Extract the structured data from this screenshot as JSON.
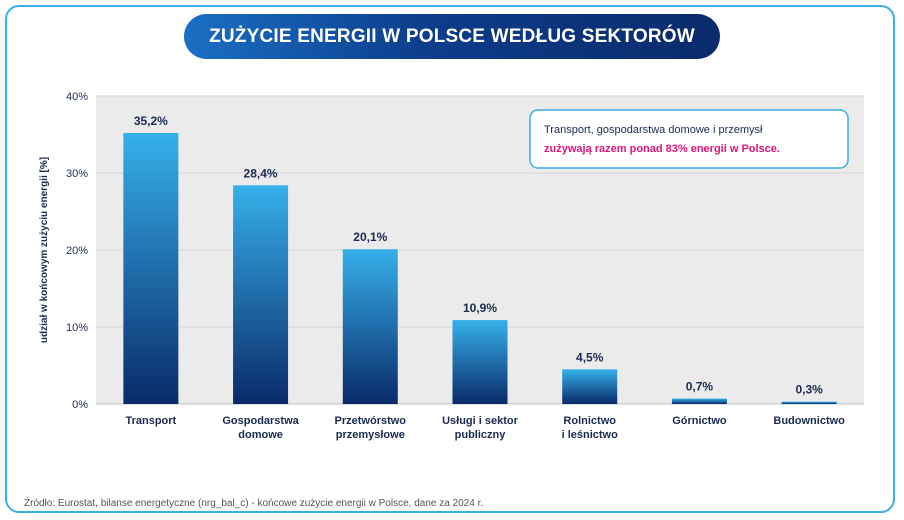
{
  "title": "ZUŻYCIE ENERGII W POLSCE WEDŁUG SEKTORÓW",
  "source": "Źródło: Eurostat, bilanse energetyczne (nrg_bal_c) - końcowe zużycie energii w Polsce, dane za 2024 r.",
  "callout": {
    "line1": "Transport, gospodarstwa domowe i przemysł",
    "line2": "zużywają razem ponad 83% energii w Polsce."
  },
  "colors": {
    "frame": "#3aaee6",
    "bar_top": "#36b0ea",
    "bar_bottom": "#0a2a6a",
    "highlight": "#e0157a",
    "text_dark": "#1a2a50",
    "plot_bg": "#ebebeb"
  },
  "chart_data": {
    "type": "bar",
    "ylabel": "udział w końcowym zużyciu energii [%]",
    "ylim": [
      0,
      40
    ],
    "yticks": [
      0,
      10,
      20,
      30,
      40
    ],
    "ytick_labels": [
      "0%",
      "10%",
      "20%",
      "30%",
      "40%"
    ],
    "grid": true,
    "categories": [
      [
        "Transport"
      ],
      [
        "Gospodarstwa",
        "domowe"
      ],
      [
        "Przetwórstwo",
        "przemysłowe"
      ],
      [
        "Usługi i sektor",
        "publiczny"
      ],
      [
        "Rolnictwo",
        "i leśnictwo"
      ],
      [
        "Górnictwo"
      ],
      [
        "Budownictwo"
      ]
    ],
    "values": [
      35.2,
      28.4,
      20.1,
      10.9,
      4.5,
      0.7,
      0.3
    ],
    "value_labels": [
      "35,2%",
      "28,4%",
      "20,1%",
      "10,9%",
      "4,5%",
      "0,7%",
      "0,3%"
    ]
  }
}
